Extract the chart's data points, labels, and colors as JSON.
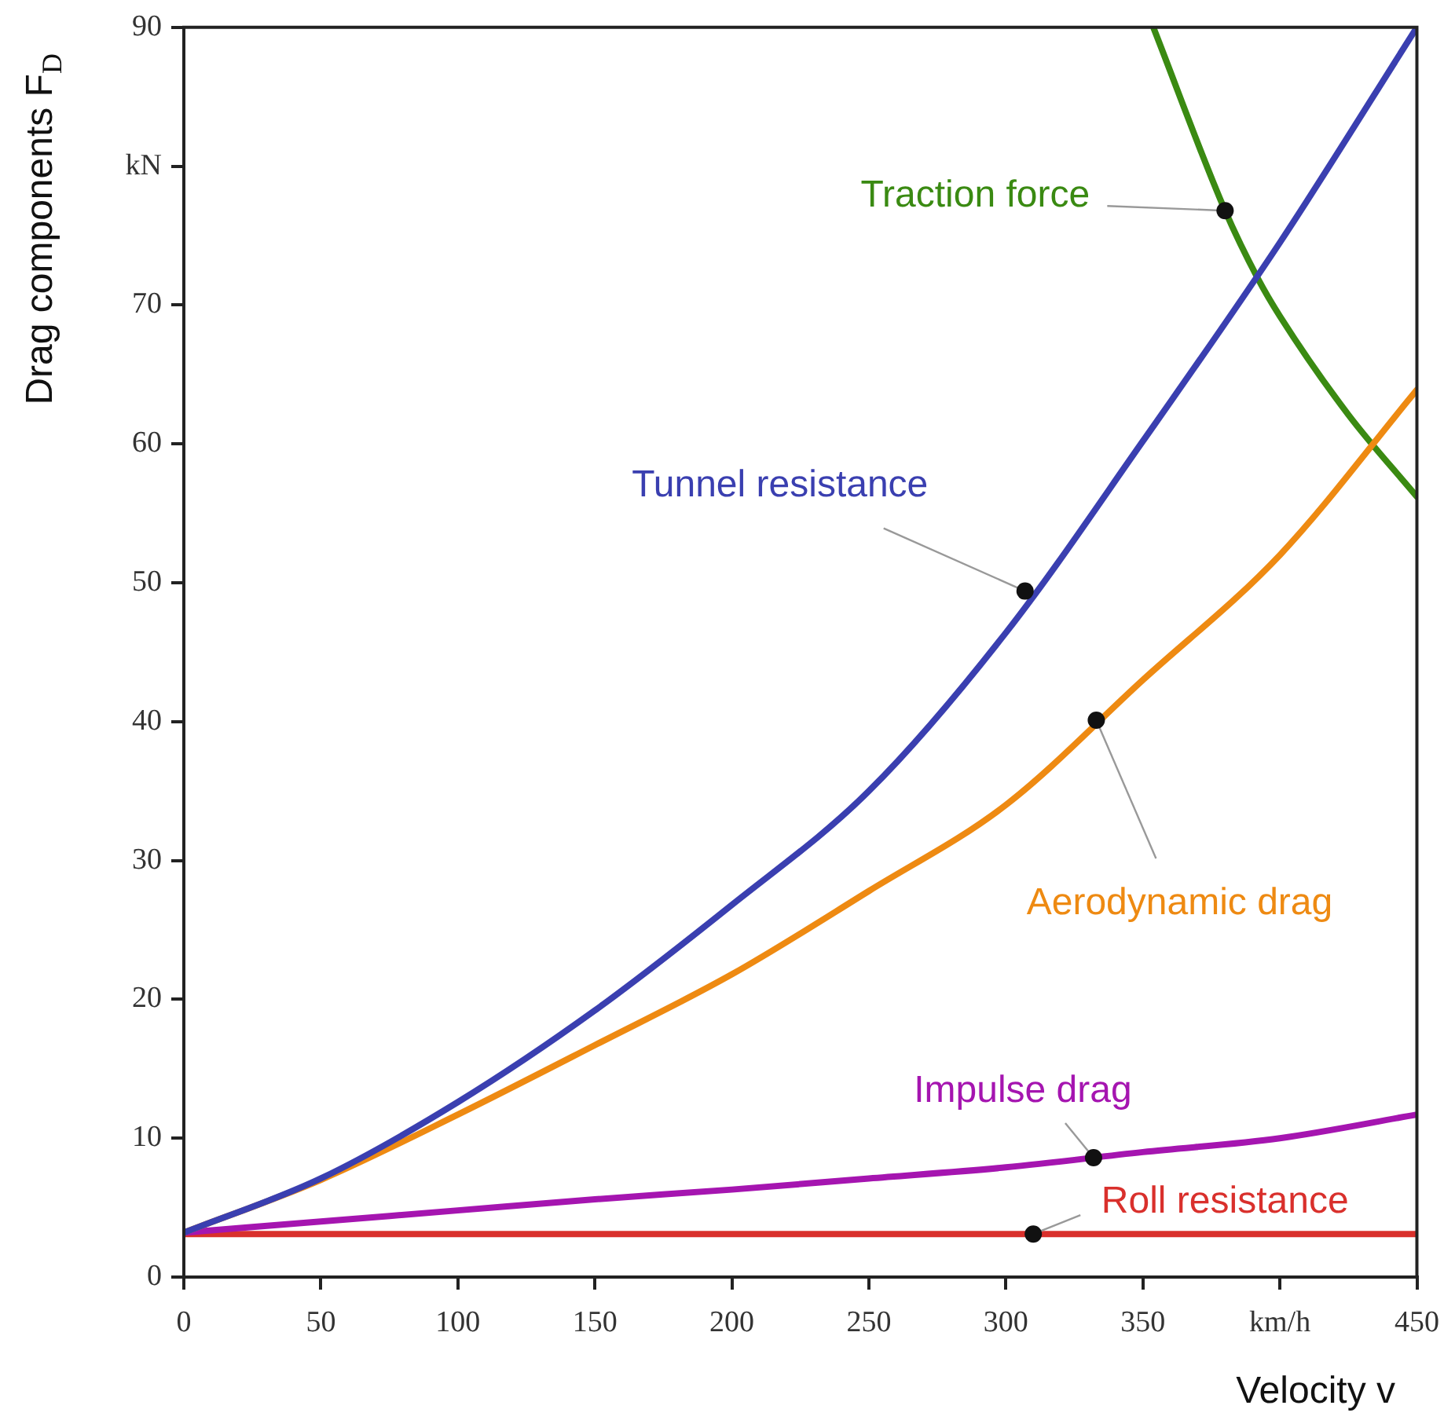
{
  "chart_data": {
    "type": "line",
    "xlabel": "Velocity  v",
    "ylabel": "Drag components  F$_{D}$",
    "xlim": [
      0,
      450
    ],
    "xticks": [
      0,
      50,
      100,
      150,
      200,
      250,
      300,
      350,
      {
        "value": 400,
        "label": "km/h"
      },
      450
    ],
    "ylim": [
      0,
      90
    ],
    "yticks": [
      0,
      10,
      20,
      30,
      40,
      50,
      60,
      70,
      {
        "value": 80,
        "label": "kN"
      },
      90
    ],
    "grid": false,
    "legend": false,
    "marker": "none",
    "line_style": "solid",
    "series": [
      {
        "color": "#3a3fb0",
        "x": [
          0,
          50,
          100,
          150,
          200,
          250,
          300,
          350,
          400,
          450
        ],
        "values": [
          3.2,
          7.1,
          12.6,
          19.2,
          26.8,
          35.0,
          46.4,
          60.2,
          74.5,
          90
        ]
      },
      {
        "color": "#ee8a12",
        "x": [
          0,
          50,
          100,
          150,
          200,
          250,
          300,
          350,
          400,
          450
        ],
        "values": [
          3.2,
          7.0,
          11.7,
          16.7,
          21.8,
          27.8,
          34.0,
          43.0,
          52.0,
          63.9
        ]
      },
      {
        "color": "#a515b0",
        "x": [
          0,
          50,
          100,
          150,
          200,
          250,
          300,
          350,
          400,
          450
        ],
        "values": [
          3.2,
          4.0,
          4.8,
          5.6,
          6.3,
          7.1,
          7.9,
          9.0,
          10.0,
          11.7
        ]
      },
      {
        "color": "#d9302c",
        "x": [
          0,
          450
        ],
        "values": [
          3.1,
          3.1
        ]
      },
      {
        "color": "#3a8a12",
        "x": [
          354,
          380,
          392,
          400,
          425,
          450
        ],
        "values": [
          89.9,
          76.8,
          71.9,
          69.2,
          62.1,
          56.2
        ]
      }
    ],
    "annotations": [
      {
        "text": "Tunnel resistance",
        "x": 307,
        "y": 49.4
      },
      {
        "text": "Aerodynamic drag",
        "x": 333,
        "y": 40.1
      },
      {
        "text": "Impulse drag",
        "x": 332,
        "y": 8.6
      },
      {
        "text": "Roll resistance",
        "x": 310,
        "y": 3.1
      },
      {
        "text": "Traction force",
        "x": 380,
        "y": 76.8
      }
    ]
  }
}
